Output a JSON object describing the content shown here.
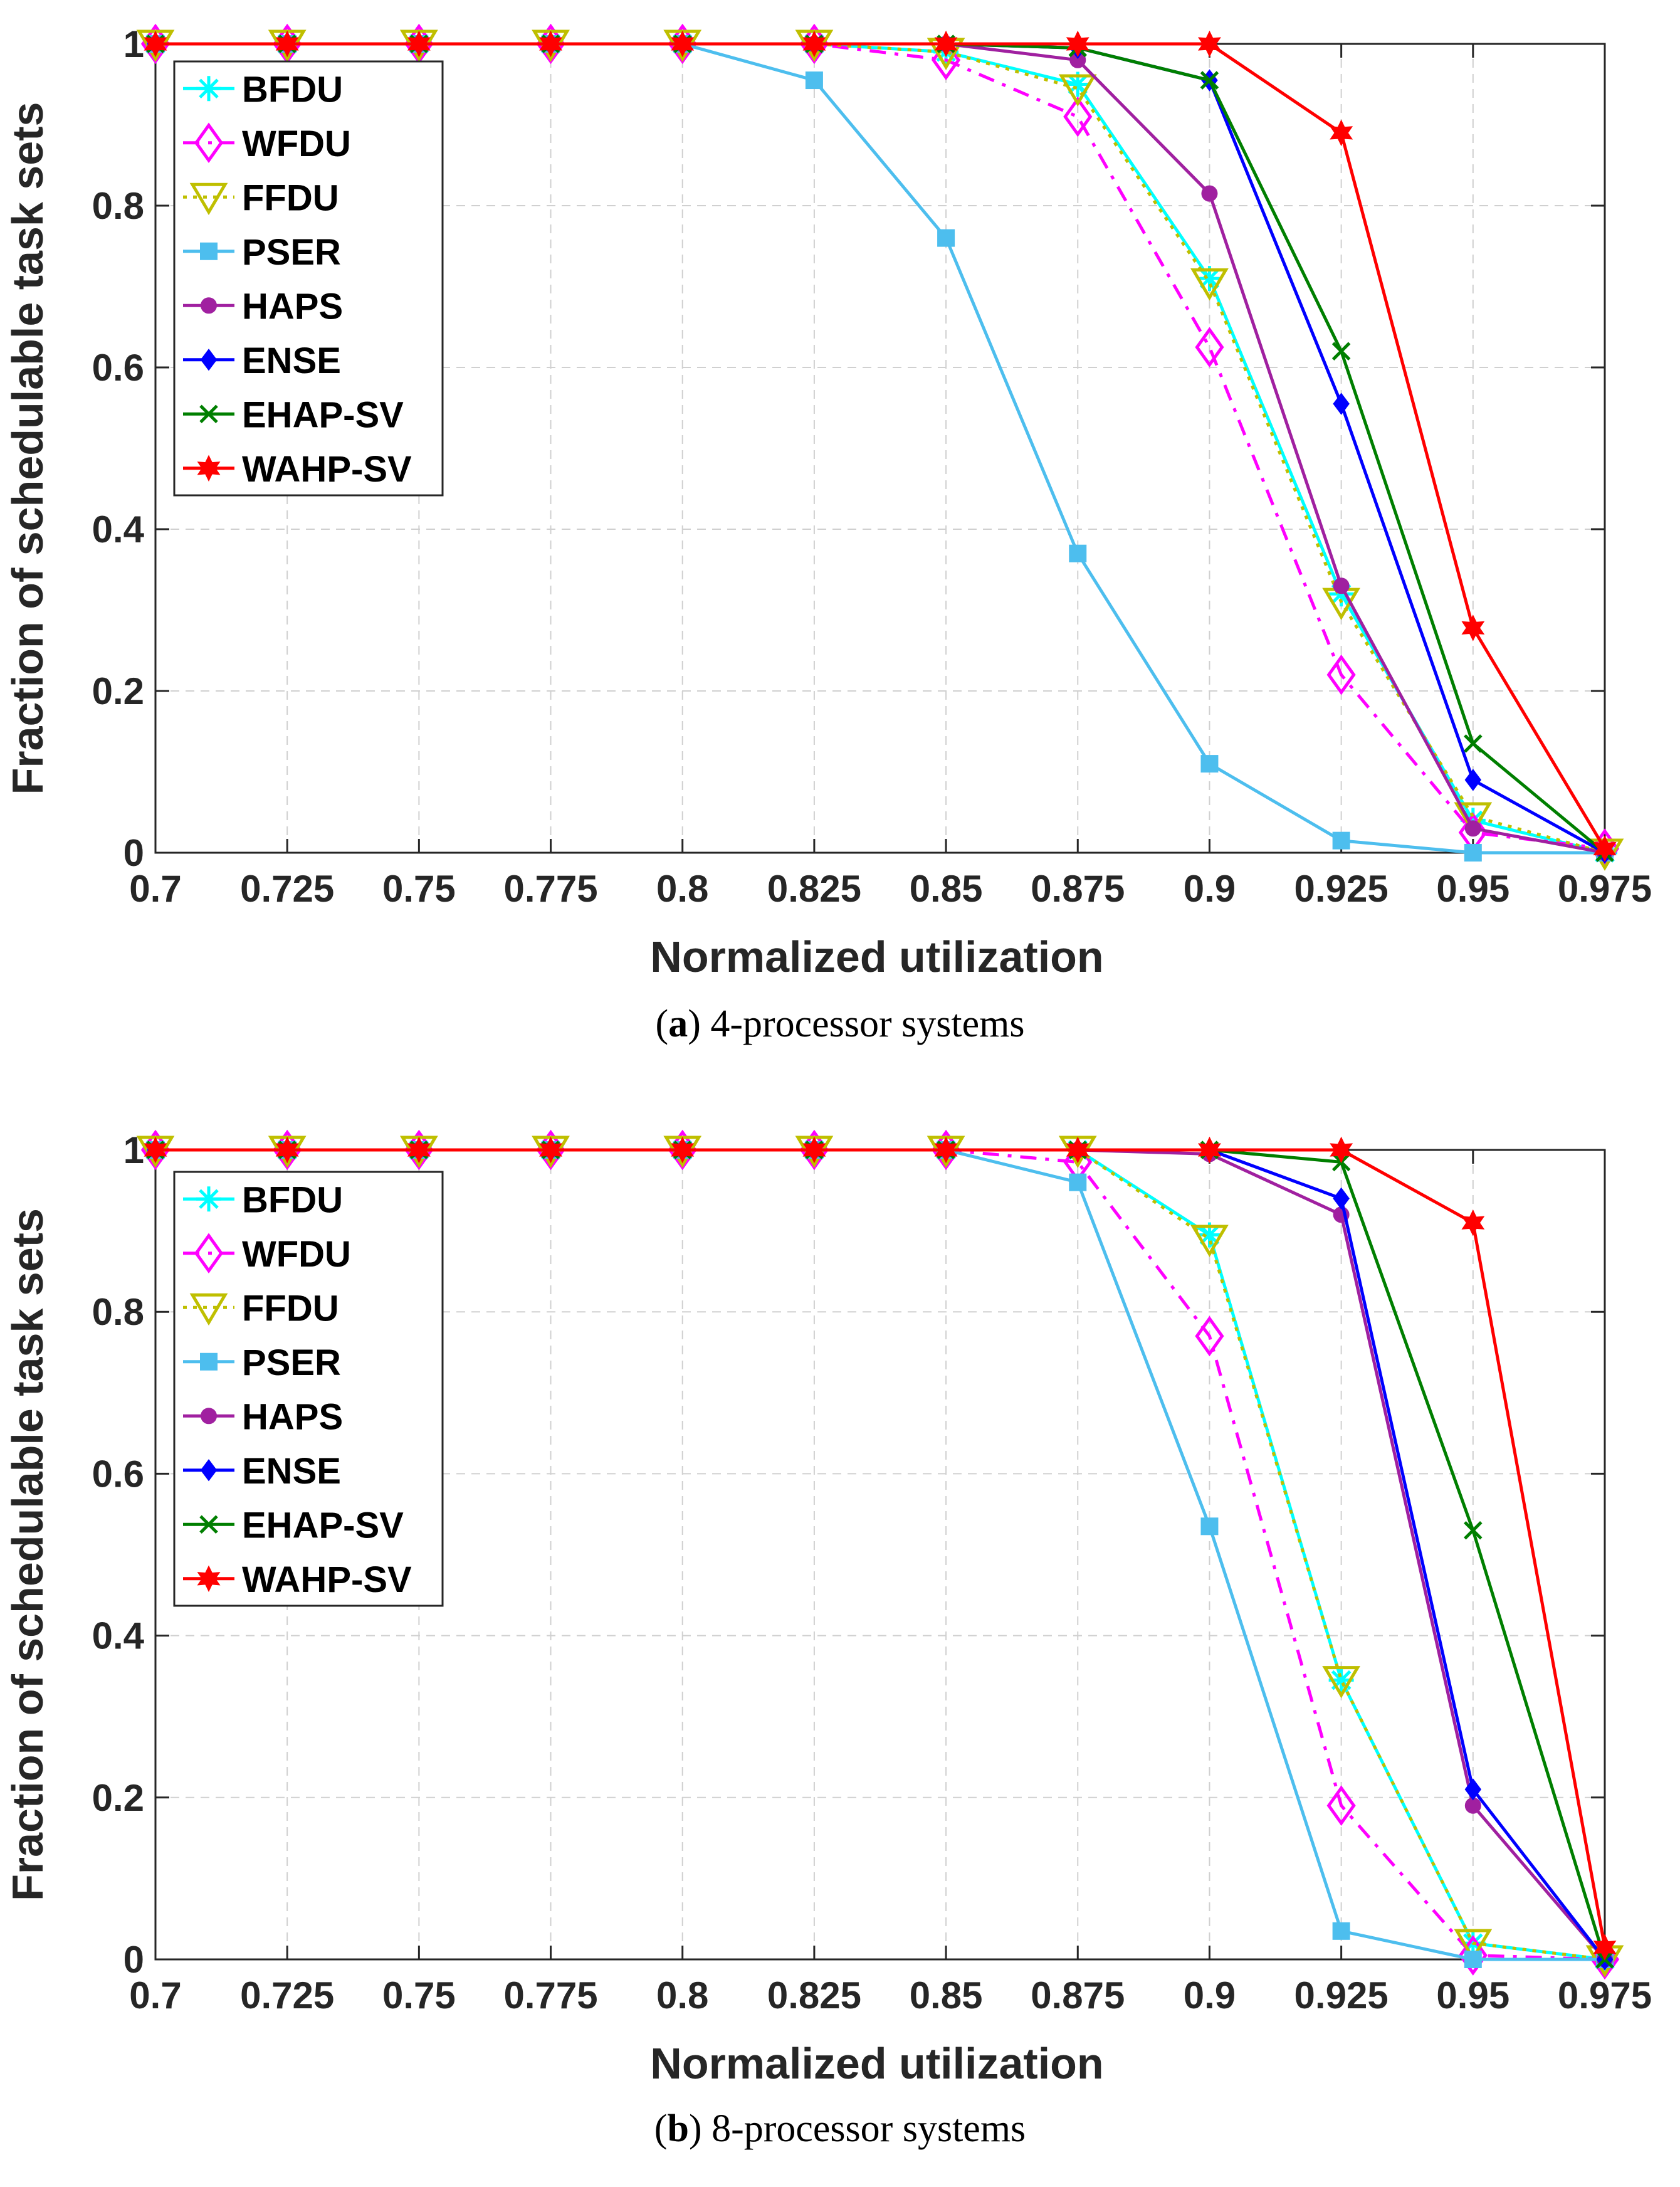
{
  "figure": {
    "panels": [
      {
        "caption_letter": "a",
        "caption_text": "4-processor systems"
      },
      {
        "caption_letter": "b",
        "caption_text": "8-processor systems"
      }
    ]
  },
  "chart_data": [
    {
      "type": "line",
      "title": "",
      "xlabel": "Normalized utilization",
      "ylabel": "Fraction of schedulable task sets",
      "x": [
        0.7,
        0.725,
        0.75,
        0.775,
        0.8,
        0.825,
        0.85,
        0.875,
        0.9,
        0.925,
        0.95,
        0.975
      ],
      "x_tick_labels": [
        "0.7",
        "0.725",
        "0.75",
        "0.775",
        "0.8",
        "0.825",
        "0.85",
        "0.875",
        "0.9",
        "0.925",
        "0.95",
        "0.975"
      ],
      "y_tick_labels": [
        "0",
        "0.2",
        "0.4",
        "0.6",
        "0.8",
        "1"
      ],
      "y_ticks": [
        0,
        0.2,
        0.4,
        0.6,
        0.8,
        1
      ],
      "ylim": [
        0,
        1
      ],
      "grid": true,
      "legend_position": "top-left",
      "series": [
        {
          "name": "BFDU",
          "color": "#00FFFF",
          "line": "solid",
          "marker": "asterisk",
          "values": [
            1,
            1,
            1,
            1,
            1,
            1,
            0.99,
            0.95,
            0.71,
            0.32,
            0.04,
            0
          ]
        },
        {
          "name": "WFDU",
          "color": "#FF00FF",
          "line": "dashdot",
          "marker": "diamond",
          "values": [
            1,
            1,
            1,
            1,
            1,
            1,
            0.98,
            0.91,
            0.625,
            0.22,
            0.025,
            0.005
          ]
        },
        {
          "name": "FFDU",
          "color": "#BFBF00",
          "line": "dotted",
          "marker": "triangle-down",
          "values": [
            1,
            1,
            1,
            1,
            1,
            1,
            0.99,
            0.945,
            0.705,
            0.31,
            0.045,
            0
          ]
        },
        {
          "name": "PSER",
          "color": "#4DBEEE",
          "line": "solid",
          "marker": "square",
          "values": [
            1,
            1,
            1,
            1,
            1,
            0.955,
            0.76,
            0.37,
            0.11,
            0.015,
            0,
            0
          ]
        },
        {
          "name": "HAPS",
          "color": "#A020A0",
          "line": "solid",
          "marker": "circle",
          "values": [
            1,
            1,
            1,
            1,
            1,
            1,
            1,
            0.98,
            0.815,
            0.33,
            0.03,
            0
          ]
        },
        {
          "name": "ENSE",
          "color": "#0000FF",
          "line": "solid",
          "marker": "diamond-filled",
          "values": [
            1,
            1,
            1,
            1,
            1,
            1,
            1,
            0.995,
            0.955,
            0.555,
            0.09,
            0
          ]
        },
        {
          "name": "EHAP-SV",
          "color": "#007F00",
          "line": "solid",
          "marker": "x",
          "values": [
            1,
            1,
            1,
            1,
            1,
            1,
            1,
            0.995,
            0.955,
            0.62,
            0.135,
            0
          ]
        },
        {
          "name": "WAHP-SV",
          "color": "#FF0000",
          "line": "solid",
          "marker": "star",
          "values": [
            1,
            1,
            1,
            1,
            1,
            1,
            1,
            1,
            1,
            0.89,
            0.278,
            0.005
          ]
        }
      ]
    },
    {
      "type": "line",
      "title": "",
      "xlabel": "Normalized utilization",
      "ylabel": "Fraction of schedulable task sets",
      "x": [
        0.7,
        0.725,
        0.75,
        0.775,
        0.8,
        0.825,
        0.85,
        0.875,
        0.9,
        0.925,
        0.95,
        0.975
      ],
      "x_tick_labels": [
        "0.7",
        "0.725",
        "0.75",
        "0.775",
        "0.8",
        "0.825",
        "0.85",
        "0.875",
        "0.9",
        "0.925",
        "0.95",
        "0.975"
      ],
      "y_tick_labels": [
        "0",
        "0.2",
        "0.4",
        "0.6",
        "0.8",
        "1"
      ],
      "y_ticks": [
        0,
        0.2,
        0.4,
        0.6,
        0.8,
        1
      ],
      "ylim": [
        0,
        1
      ],
      "grid": true,
      "legend_position": "top-left",
      "series": [
        {
          "name": "BFDU",
          "color": "#00FFFF",
          "line": "solid",
          "marker": "asterisk",
          "values": [
            1,
            1,
            1,
            1,
            1,
            1,
            1,
            1,
            0.895,
            0.345,
            0.02,
            0
          ]
        },
        {
          "name": "WFDU",
          "color": "#FF00FF",
          "line": "dashdot",
          "marker": "diamond",
          "values": [
            1,
            1,
            1,
            1,
            1,
            1,
            1,
            0.985,
            0.77,
            0.19,
            0.005,
            0
          ]
        },
        {
          "name": "FFDU",
          "color": "#BFBF00",
          "line": "dotted",
          "marker": "triangle-down",
          "values": [
            1,
            1,
            1,
            1,
            1,
            1,
            1,
            1,
            0.89,
            0.345,
            0.02,
            0
          ]
        },
        {
          "name": "PSER",
          "color": "#4DBEEE",
          "line": "solid",
          "marker": "square",
          "values": [
            1,
            1,
            1,
            1,
            1,
            1,
            1,
            0.96,
            0.535,
            0.035,
            0,
            0
          ]
        },
        {
          "name": "HAPS",
          "color": "#A020A0",
          "line": "solid",
          "marker": "circle",
          "values": [
            1,
            1,
            1,
            1,
            1,
            1,
            1,
            1,
            0.995,
            0.92,
            0.19,
            0
          ]
        },
        {
          "name": "ENSE",
          "color": "#0000FF",
          "line": "solid",
          "marker": "diamond-filled",
          "values": [
            1,
            1,
            1,
            1,
            1,
            1,
            1,
            1,
            1,
            0.94,
            0.21,
            0
          ]
        },
        {
          "name": "EHAP-SV",
          "color": "#007F00",
          "line": "solid",
          "marker": "x",
          "values": [
            1,
            1,
            1,
            1,
            1,
            1,
            1,
            1,
            1,
            0.985,
            0.53,
            0
          ]
        },
        {
          "name": "WAHP-SV",
          "color": "#FF0000",
          "line": "solid",
          "marker": "star",
          "values": [
            1,
            1,
            1,
            1,
            1,
            1,
            1,
            1,
            1,
            1,
            0.91,
            0.015
          ]
        }
      ]
    }
  ]
}
